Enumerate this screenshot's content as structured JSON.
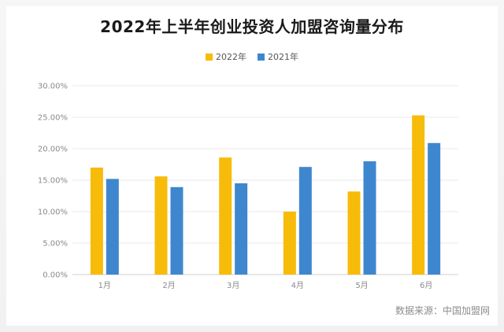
{
  "title": "2022年上半年创业投资人加盟咨询量分布",
  "source": "数据来源：中国加盟网",
  "colors": {
    "s2022": "#f7bb0a",
    "s2021": "#3e87cf",
    "grid": "#e9e9e9",
    "axis": "#cfcfcf"
  },
  "chart_data": {
    "type": "bar",
    "title": "2022年上半年创业投资人加盟咨询量分布",
    "categories": [
      "1月",
      "2月",
      "3月",
      "4月",
      "5月",
      "6月"
    ],
    "series": [
      {
        "name": "2022年",
        "values": [
          17.0,
          15.6,
          18.6,
          10.0,
          13.2,
          25.3
        ]
      },
      {
        "name": "2021年",
        "values": [
          15.2,
          13.9,
          14.5,
          17.1,
          18.0,
          20.9
        ]
      }
    ],
    "yticks": [
      "0.00%",
      "5.00%",
      "10.00%",
      "15.00%",
      "20.00%",
      "25.00%",
      "30.00%"
    ],
    "ylim": [
      0,
      30
    ],
    "xlabel": "",
    "ylabel": "",
    "legend_position": "top-center",
    "grid": true
  }
}
